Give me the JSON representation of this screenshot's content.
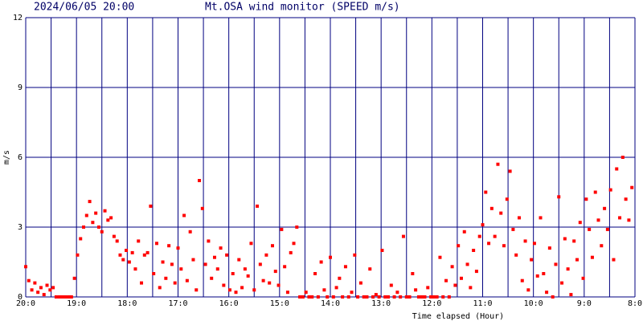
{
  "chart_data": {
    "type": "scatter",
    "date_label": "2024/06/05 20:00",
    "title": "Mt.OSA wind monitor (SPEED m/s)",
    "y_label": "m/s",
    "x_label": "Time elapsed (Hour)",
    "color": "#ff0000",
    "grid": true,
    "xlim": [
      0,
      12
    ],
    "ylim": [
      0,
      12
    ],
    "yticks": [
      0,
      3,
      6,
      9,
      12
    ],
    "xticks": [
      {
        "value": 0,
        "label": "20:0"
      },
      {
        "value": 1,
        "label": "19:0"
      },
      {
        "value": 2,
        "label": "18:0"
      },
      {
        "value": 3,
        "label": "17:0"
      },
      {
        "value": 4,
        "label": "16:0"
      },
      {
        "value": 5,
        "label": "15:0"
      },
      {
        "value": 6,
        "label": "14:0"
      },
      {
        "value": 7,
        "label": "13:0"
      },
      {
        "value": 8,
        "label": "12:0"
      },
      {
        "value": 9,
        "label": "11:0"
      },
      {
        "value": 10,
        "label": "10:0"
      },
      {
        "value": 11,
        "label": "9:0"
      },
      {
        "value": 12,
        "label": "8:0"
      }
    ],
    "minor_xticks": [
      0.5,
      1.5,
      2.5,
      3.5,
      4.5,
      5.5,
      6.5,
      7.5,
      8.5,
      9.5,
      10.5,
      11.5
    ],
    "x": [
      0,
      0.06,
      0.12,
      0.18,
      0.24,
      0.3,
      0.36,
      0.42,
      0.48,
      0.54,
      0.6,
      0.66,
      0.72,
      0.78,
      0.84,
      0.9,
      0.96,
      1.02,
      1.08,
      1.14,
      1.2,
      1.26,
      1.32,
      1.38,
      1.44,
      1.5,
      1.56,
      1.62,
      1.68,
      1.74,
      1.8,
      1.86,
      1.92,
      1.98,
      2.04,
      2.1,
      2.16,
      2.22,
      2.28,
      2.34,
      2.4,
      2.46,
      2.52,
      2.58,
      2.64,
      2.7,
      2.76,
      2.82,
      2.88,
      2.94,
      3,
      3.06,
      3.12,
      3.18,
      3.24,
      3.3,
      3.36,
      3.42,
      3.48,
      3.54,
      3.6,
      3.66,
      3.72,
      3.78,
      3.84,
      3.9,
      3.96,
      4.02,
      4.08,
      4.14,
      4.2,
      4.26,
      4.32,
      4.38,
      4.44,
      4.5,
      4.56,
      4.62,
      4.68,
      4.74,
      4.8,
      4.86,
      4.92,
      4.98,
      5.04,
      5.1,
      5.16,
      5.22,
      5.28,
      5.34,
      5.4,
      5.46,
      5.52,
      5.58,
      5.64,
      5.7,
      5.76,
      5.82,
      5.88,
      5.94,
      6,
      6.06,
      6.12,
      6.18,
      6.24,
      6.3,
      6.36,
      6.42,
      6.48,
      6.54,
      6.6,
      6.66,
      6.72,
      6.78,
      6.84,
      6.9,
      6.96,
      7.02,
      7.08,
      7.14,
      7.2,
      7.26,
      7.32,
      7.38,
      7.44,
      7.5,
      7.56,
      7.62,
      7.68,
      7.74,
      7.8,
      7.86,
      7.92,
      7.98,
      8.04,
      8.1,
      8.16,
      8.22,
      8.28,
      8.34,
      8.4,
      8.46,
      8.52,
      8.58,
      8.64,
      8.7,
      8.76,
      8.82,
      8.88,
      8.94,
      9,
      9.06,
      9.12,
      9.18,
      9.24,
      9.3,
      9.36,
      9.42,
      9.48,
      9.54,
      9.6,
      9.66,
      9.72,
      9.78,
      9.84,
      9.9,
      9.96,
      10.02,
      10.08,
      10.14,
      10.2,
      10.26,
      10.32,
      10.38,
      10.44,
      10.5,
      10.56,
      10.62,
      10.68,
      10.74,
      10.8,
      10.86,
      10.92,
      10.98,
      11.04,
      11.1,
      11.16,
      11.22,
      11.28,
      11.34,
      11.4,
      11.46,
      11.52,
      11.58,
      11.64,
      11.7,
      11.76,
      11.82,
      11.88,
      11.94
    ],
    "values": [
      1.3,
      0.7,
      0.3,
      0.6,
      0.2,
      0.4,
      0.1,
      0.5,
      0.3,
      0.4,
      0,
      0,
      0,
      0,
      0,
      0,
      0.8,
      1.8,
      2.5,
      3.0,
      3.5,
      4.1,
      3.2,
      3.6,
      3.0,
      2.8,
      3.7,
      3.3,
      3.4,
      2.6,
      2.4,
      1.8,
      1.6,
      2.0,
      1.5,
      1.9,
      1.2,
      2.4,
      0.6,
      1.8,
      1.9,
      3.9,
      1.0,
      2.3,
      0.4,
      1.5,
      0.8,
      2.2,
      1.4,
      0.6,
      2.1,
      1.2,
      3.5,
      0.7,
      2.8,
      1.6,
      0.3,
      5.0,
      3.8,
      1.4,
      2.4,
      0.8,
      1.7,
      1.2,
      2.1,
      0.5,
      1.8,
      0.3,
      1.0,
      0.2,
      1.6,
      0.4,
      1.2,
      0.9,
      2.3,
      0.3,
      3.9,
      1.4,
      0.7,
      1.8,
      0.6,
      2.2,
      1.1,
      0.5,
      2.9,
      1.3,
      0.2,
      1.9,
      2.3,
      3.0,
      0,
      0,
      0.2,
      0,
      0,
      1.0,
      0,
      1.5,
      0.3,
      0,
      1.7,
      0,
      0.4,
      0.8,
      0,
      1.3,
      0,
      0.2,
      1.8,
      0,
      0.6,
      0,
      0,
      1.2,
      0,
      0.1,
      0,
      2.0,
      0,
      0,
      0.5,
      0,
      0.2,
      0,
      2.6,
      0,
      0,
      1.0,
      0.3,
      0,
      0,
      0,
      0.4,
      0,
      0,
      0,
      1.7,
      0,
      0.7,
      0,
      1.3,
      0.5,
      2.2,
      0.8,
      2.8,
      1.4,
      0.4,
      2.0,
      1.1,
      2.6,
      3.1,
      4.5,
      2.3,
      3.8,
      2.6,
      5.7,
      3.6,
      2.2,
      4.2,
      5.4,
      2.9,
      1.8,
      3.4,
      0.7,
      2.4,
      0.3,
      1.6,
      2.3,
      0.9,
      3.4,
      1.0,
      0.2,
      2.1,
      0,
      1.4,
      4.3,
      0.6,
      2.5,
      1.2,
      0.1,
      2.4,
      1.6,
      3.2,
      0.8,
      4.2,
      2.9,
      1.7,
      4.5,
      3.3,
      2.2,
      3.8,
      2.9,
      4.6,
      1.6,
      5.5,
      3.4,
      6.0,
      4.2,
      3.3,
      4.7
    ]
  }
}
